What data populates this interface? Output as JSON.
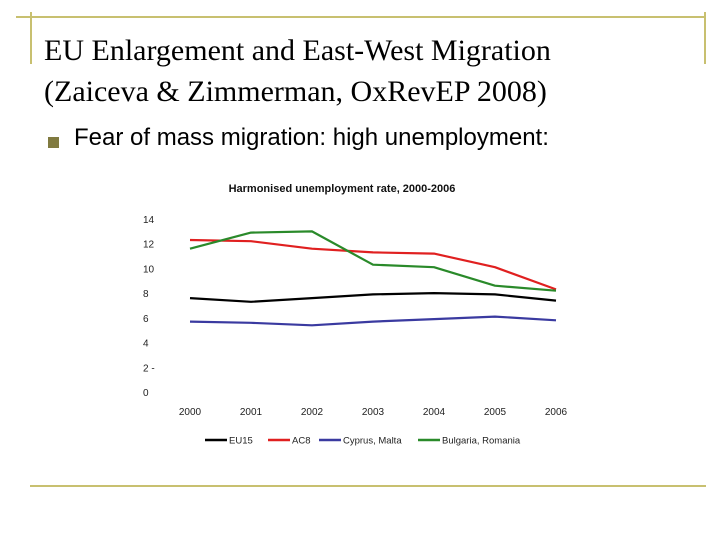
{
  "slide": {
    "title_line1": "EU Enlargement and East-West Migration",
    "title_line2": "(Zaiceva & Zimmerman, OxRevEP 2008)",
    "bullet": "Fear of mass migration: high unemployment:"
  },
  "chart_data": {
    "type": "line",
    "title": "Harmonised unemployment rate, 2000-2006",
    "xlabel": "",
    "ylabel": "",
    "categories": [
      "2000",
      "2001",
      "2002",
      "2003",
      "2004",
      "2005",
      "2006"
    ],
    "ylim": [
      0,
      14
    ],
    "yticks": [
      0,
      2,
      4,
      6,
      8,
      10,
      12,
      14
    ],
    "ytick_labels": [
      "0",
      "2 -",
      "4",
      "6",
      "8",
      "10",
      "12",
      "14"
    ],
    "series": [
      {
        "name": "EU15",
        "color": "#000000",
        "values": [
          7.6,
          7.3,
          7.6,
          7.9,
          8.0,
          7.9,
          7.4
        ]
      },
      {
        "name": "AC8",
        "color": "#e02020",
        "values": [
          12.3,
          12.2,
          11.6,
          11.3,
          11.2,
          10.1,
          8.3
        ]
      },
      {
        "name": "Cyprus, Malta",
        "color": "#3a3aa0",
        "values": [
          5.7,
          5.6,
          5.4,
          5.7,
          5.9,
          6.1,
          5.8
        ]
      },
      {
        "name": "Bulgaria, Romania",
        "color": "#2a8a2a",
        "values": [
          11.6,
          12.9,
          13.0,
          10.3,
          10.1,
          8.6,
          8.2
        ]
      }
    ],
    "legend_position": "bottom"
  }
}
